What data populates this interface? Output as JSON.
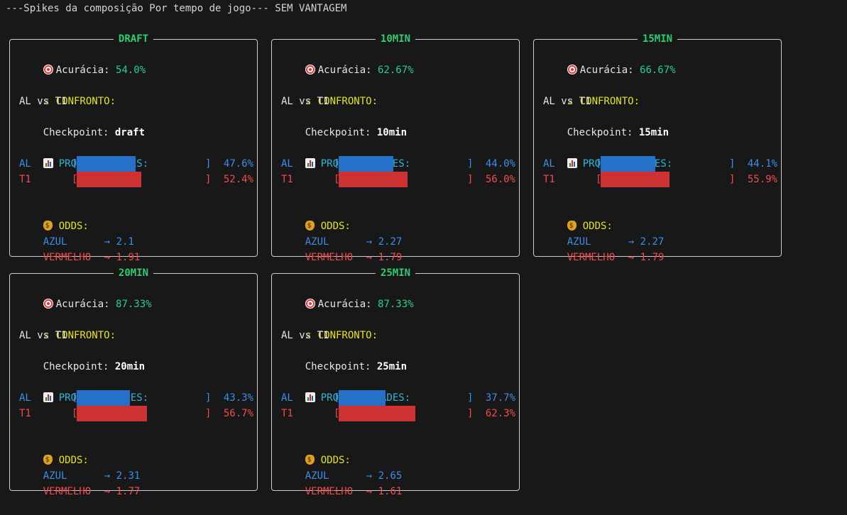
{
  "header": "---Spikes da composição Por tempo de jogo--- SEM VANTAGEM",
  "labels": {
    "accuracy": "Acurácia:",
    "confronto": "CONFRONTO:",
    "checkpoint": "Checkpoint:",
    "probabilidades": "PROBABILIDADES:",
    "odds": "ODDS:",
    "azul": "AZUL",
    "vermelho": "VERMELHO",
    "arrow": "→",
    "lbracket": "[",
    "rbracket": "]"
  },
  "icons": {
    "accuracy": "target-icon",
    "confronto": "crossed-swords-icon",
    "probabilidades": "bar-chart-icon",
    "odds": "money-bag-icon"
  },
  "colors": {
    "title": "#2ecc71",
    "accuracy": "#23d18b",
    "section": "#e5e510",
    "prob_section": "#29b8db",
    "blue_team": "#3b8eea",
    "red_team": "#f14c4c",
    "blue_bar": "#2770c9",
    "red_bar": "#cd3131"
  },
  "panels": [
    {
      "title": "DRAFT",
      "accuracy": "54.0%",
      "match": "AL vs T1",
      "checkpoint": "draft",
      "team_blue": "AL",
      "team_red": "T1",
      "prob_blue": 0.476,
      "prob_red": 0.524,
      "prob_blue_text": "47.6%",
      "prob_red_text": "52.4%",
      "odd_blue": "2.1",
      "odd_red": "1.91"
    },
    {
      "title": "10MIN",
      "accuracy": "62.67%",
      "match": "AL vs T1",
      "checkpoint": "10min",
      "team_blue": "AL",
      "team_red": "T1",
      "prob_blue": 0.44,
      "prob_red": 0.56,
      "prob_blue_text": "44.0%",
      "prob_red_text": "56.0%",
      "odd_blue": "2.27",
      "odd_red": "1.79"
    },
    {
      "title": "15MIN",
      "accuracy": "66.67%",
      "match": "AL vs T1",
      "checkpoint": "15min",
      "team_blue": "AL",
      "team_red": "T1",
      "prob_blue": 0.441,
      "prob_red": 0.559,
      "prob_blue_text": "44.1%",
      "prob_red_text": "55.9%",
      "odd_blue": "2.27",
      "odd_red": "1.79"
    },
    {
      "title": "20MIN",
      "accuracy": "87.33%",
      "match": "AL vs T1",
      "checkpoint": "20min",
      "team_blue": "AL",
      "team_red": "T1",
      "prob_blue": 0.433,
      "prob_red": 0.567,
      "prob_blue_text": "43.3%",
      "prob_red_text": "56.7%",
      "odd_blue": "2.31",
      "odd_red": "1.77"
    },
    {
      "title": "25MIN",
      "accuracy": "87.33%",
      "match": "AL vs T1",
      "checkpoint": "25min",
      "team_blue": "AL",
      "team_red": "T1",
      "prob_blue": 0.377,
      "prob_red": 0.623,
      "prob_blue_text": "37.7%",
      "prob_red_text": "62.3%",
      "odd_blue": "2.65",
      "odd_red": "1.61"
    }
  ]
}
